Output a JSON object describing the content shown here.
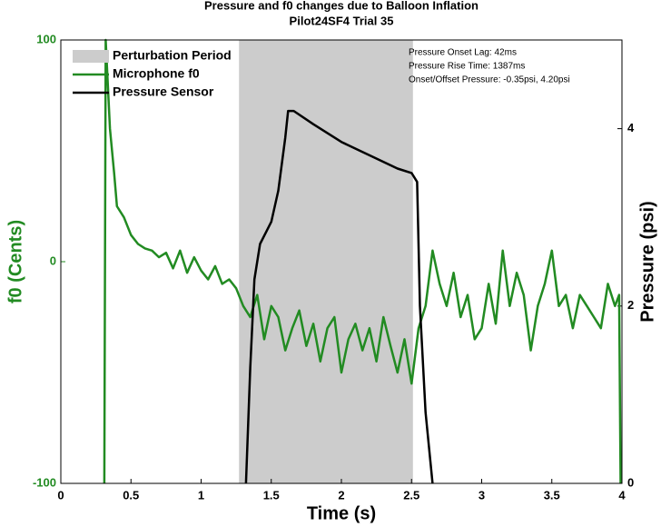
{
  "chart_data": {
    "type": "line",
    "title": "Pressure and f0 changes due to Balloon Inflation",
    "subtitle": "Pilot24SF4 Trial 35",
    "x_label": "Time (s)",
    "y_label": "f0 (Cents)",
    "y2_label": "Pressure (psi)",
    "xlim": [
      0,
      4
    ],
    "xticks": [
      0,
      0.5,
      1,
      1.5,
      2,
      2.5,
      3,
      3.5,
      4
    ],
    "ylim": [
      -100,
      100
    ],
    "yticks": [
      -100,
      0,
      100
    ],
    "y2lim": [
      0,
      5
    ],
    "y2ticks": [
      0,
      2,
      4
    ],
    "legend_position": "upper left",
    "shaded_region": {
      "name": "Perturbation Period",
      "color": "#cccccc",
      "x": [
        1.27,
        2.51
      ]
    },
    "annotations": [
      "Pressure Onset Lag: 42ms",
      "Pressure Rise Time: 1387ms",
      "Onset/Offset Pressure: -0.35psi, 4.20psi"
    ],
    "series": [
      {
        "name": "Microphone f0",
        "color": "#228b22",
        "x": [
          0.31,
          0.32,
          0.35,
          0.38,
          0.4,
          0.45,
          0.5,
          0.55,
          0.6,
          0.65,
          0.7,
          0.75,
          0.8,
          0.85,
          0.9,
          0.95,
          1.0,
          1.05,
          1.1,
          1.15,
          1.2,
          1.25,
          1.3,
          1.35,
          1.4,
          1.45,
          1.5,
          1.55,
          1.6,
          1.65,
          1.7,
          1.75,
          1.8,
          1.85,
          1.9,
          1.95,
          2.0,
          2.05,
          2.1,
          2.15,
          2.2,
          2.25,
          2.3,
          2.35,
          2.4,
          2.45,
          2.5,
          2.55,
          2.6,
          2.65,
          2.7,
          2.75,
          2.8,
          2.85,
          2.9,
          2.95,
          3.0,
          3.05,
          3.1,
          3.15,
          3.2,
          3.25,
          3.3,
          3.35,
          3.4,
          3.45,
          3.5,
          3.55,
          3.6,
          3.65,
          3.7,
          3.75,
          3.8,
          3.85,
          3.9,
          3.95,
          3.98,
          3.99
        ],
        "values": [
          -100,
          100,
          60,
          40,
          25,
          20,
          12,
          8,
          6,
          5,
          2,
          4,
          -3,
          5,
          -5,
          2,
          -4,
          -8,
          -2,
          -10,
          -8,
          -12,
          -20,
          -25,
          -15,
          -35,
          -20,
          -25,
          -40,
          -30,
          -22,
          -38,
          -28,
          -45,
          -30,
          -25,
          -50,
          -35,
          -28,
          -40,
          -30,
          -45,
          -25,
          -38,
          -50,
          -35,
          -55,
          -30,
          -20,
          5,
          -10,
          -20,
          -5,
          -25,
          -15,
          -35,
          -30,
          -10,
          -28,
          5,
          -20,
          -5,
          -15,
          -40,
          -20,
          -10,
          5,
          -20,
          -15,
          -30,
          -15,
          -20,
          -25,
          -30,
          -10,
          -20,
          -15,
          -100
        ]
      },
      {
        "name": "Pressure Sensor",
        "color": "#000000",
        "axis": "y2",
        "x": [
          1.32,
          1.35,
          1.38,
          1.42,
          1.5,
          1.55,
          1.6,
          1.62,
          1.66,
          1.8,
          2.0,
          2.2,
          2.4,
          2.5,
          2.54,
          2.56,
          2.6,
          2.65
        ],
        "values": [
          0,
          1.3,
          2.3,
          2.7,
          2.95,
          3.3,
          3.9,
          4.2,
          4.2,
          4.05,
          3.85,
          3.7,
          3.55,
          3.5,
          3.4,
          2.0,
          0.8,
          0
        ]
      }
    ]
  }
}
